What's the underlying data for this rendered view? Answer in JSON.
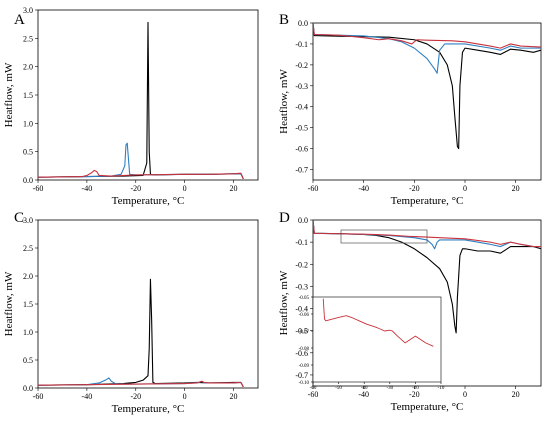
{
  "colors": {
    "black": "#000000",
    "blue": "#2e7fc2",
    "red": "#c8323c",
    "grey": "#555555"
  },
  "chart_data": [
    {
      "panel": "A",
      "type": "line",
      "xlabel": "Temperature, °C",
      "ylabel": "Heatflow, mW",
      "xlim": [
        -60,
        30
      ],
      "ylim": [
        0,
        3.0
      ],
      "x_ticks": [
        -60,
        -40,
        -20,
        0,
        20
      ],
      "y_ticks": [
        0.0,
        0.5,
        1.0,
        1.5,
        2.0,
        2.5,
        3.0
      ],
      "x_tick_labels": [
        "-60",
        "-40",
        "-20",
        "0",
        "20"
      ],
      "y_tick_labels": [
        "0.0",
        "0.5",
        "1.0",
        "1.5",
        "2.0",
        "2.5",
        "3.0"
      ],
      "series": [
        {
          "color": "#000000",
          "x": [
            -60,
            -40,
            -25,
            -17,
            -15.5,
            -15,
            -14.5,
            -14,
            -13,
            0,
            10,
            20,
            23,
            24
          ],
          "y": [
            0.05,
            0.06,
            0.07,
            0.08,
            0.3,
            2.78,
            0.5,
            0.1,
            0.09,
            0.1,
            0.1,
            0.11,
            0.11,
            0.02
          ]
        },
        {
          "color": "#2e7fc2",
          "x": [
            -60,
            -40,
            -30,
            -26,
            -24.5,
            -24,
            -23.5,
            -22.5,
            -20,
            0,
            10,
            20,
            23,
            24
          ],
          "y": [
            0.05,
            0.06,
            0.07,
            0.1,
            0.25,
            0.62,
            0.65,
            0.1,
            0.09,
            0.1,
            0.1,
            0.11,
            0.11,
            0.02
          ]
        },
        {
          "color": "#c8323c",
          "x": [
            -60,
            -42,
            -40,
            -38,
            -37,
            -36,
            -35,
            -30,
            -20,
            0,
            10,
            20,
            23,
            24
          ],
          "y": [
            0.05,
            0.06,
            0.08,
            0.13,
            0.17,
            0.15,
            0.08,
            0.07,
            0.09,
            0.1,
            0.1,
            0.11,
            0.12,
            0.02
          ]
        }
      ]
    },
    {
      "panel": "B",
      "type": "line",
      "xlabel": "Temperature, °C",
      "ylabel": "Heatflow, mW",
      "xlim": [
        -60,
        30
      ],
      "ylim": [
        -0.75,
        0.0
      ],
      "x_ticks": [
        -60,
        -40,
        -20,
        0,
        20
      ],
      "y_ticks": [
        0.0,
        -0.1,
        -0.2,
        -0.3,
        -0.4,
        -0.5,
        -0.6,
        -0.7
      ],
      "x_tick_labels": [
        "-60",
        "-40",
        "-20",
        "0",
        "20"
      ],
      "y_tick_labels": [
        "0.0",
        "-0.1",
        "-0.2",
        "-0.3",
        "-0.4",
        "-0.5",
        "-0.6",
        "-0.7"
      ],
      "series": [
        {
          "color": "#000000",
          "x": [
            -60,
            -59.5,
            -50,
            -40,
            -30,
            -20,
            -15,
            -10,
            -7,
            -5,
            -4,
            -3,
            -2.5,
            -2,
            -1,
            0,
            5,
            10,
            14,
            18,
            22,
            27,
            30
          ],
          "y": [
            0.0,
            -0.06,
            -0.063,
            -0.065,
            -0.068,
            -0.08,
            -0.1,
            -0.14,
            -0.2,
            -0.3,
            -0.45,
            -0.59,
            -0.6,
            -0.3,
            -0.14,
            -0.12,
            -0.13,
            -0.14,
            -0.15,
            -0.125,
            -0.13,
            -0.14,
            -0.13
          ]
        },
        {
          "color": "#2e7fc2",
          "x": [
            -60,
            -59.5,
            -50,
            -40,
            -30,
            -25,
            -20,
            -15,
            -12,
            -11,
            -10,
            -8,
            -5,
            0,
            10,
            14,
            18,
            22,
            30
          ],
          "y": [
            0.0,
            -0.055,
            -0.058,
            -0.062,
            -0.075,
            -0.09,
            -0.12,
            -0.17,
            -0.22,
            -0.24,
            -0.13,
            -0.1,
            -0.1,
            -0.1,
            -0.12,
            -0.13,
            -0.11,
            -0.12,
            -0.12
          ]
        },
        {
          "color": "#c8323c",
          "x": [
            -60,
            -59.5,
            -50,
            -40,
            -34,
            -30,
            -25,
            -21,
            -19,
            -15,
            -5,
            0,
            5,
            10,
            14,
            18,
            22,
            30
          ],
          "y": [
            0.0,
            -0.055,
            -0.058,
            -0.07,
            -0.08,
            -0.075,
            -0.085,
            -0.1,
            -0.08,
            -0.082,
            -0.085,
            -0.09,
            -0.1,
            -0.11,
            -0.12,
            -0.1,
            -0.11,
            -0.115
          ]
        }
      ]
    },
    {
      "panel": "C",
      "type": "line",
      "xlabel": "Temperature, °C",
      "ylabel": "Heatflow, mW",
      "xlim": [
        -60,
        30
      ],
      "ylim": [
        0,
        3.0
      ],
      "x_ticks": [
        -60,
        -40,
        -20,
        0,
        20
      ],
      "y_ticks": [
        0.0,
        0.5,
        1.0,
        1.5,
        2.0,
        2.5,
        3.0
      ],
      "x_tick_labels": [
        "-60",
        "-40",
        "-20",
        "0",
        "20"
      ],
      "y_tick_labels": [
        "0.0",
        "0.5",
        "1.0",
        "1.5",
        "2.0",
        "2.5",
        "3.0"
      ],
      "series": [
        {
          "color": "#000000",
          "x": [
            -60,
            -40,
            -25,
            -20,
            -17,
            -15,
            -14.5,
            -14,
            -13.5,
            -13,
            -12,
            0,
            5,
            10,
            20,
            23,
            24
          ],
          "y": [
            0.05,
            0.06,
            0.08,
            0.1,
            0.14,
            0.22,
            0.7,
            1.94,
            1.2,
            0.1,
            0.08,
            0.09,
            0.1,
            0.09,
            0.1,
            0.1,
            0.02
          ]
        },
        {
          "color": "#2e7fc2",
          "x": [
            -60,
            -40,
            -35,
            -32,
            -31,
            -30,
            -28,
            -20,
            0,
            6,
            7,
            8,
            20,
            23,
            24
          ],
          "y": [
            0.05,
            0.06,
            0.09,
            0.15,
            0.18,
            0.12,
            0.07,
            0.07,
            0.08,
            0.1,
            0.12,
            0.09,
            0.09,
            0.1,
            0.02
          ]
        },
        {
          "color": "#c8323c",
          "x": [
            -60,
            -40,
            -20,
            0,
            5,
            7,
            8,
            10,
            20,
            23,
            24
          ],
          "y": [
            0.05,
            0.06,
            0.07,
            0.08,
            0.09,
            0.12,
            0.1,
            0.09,
            0.09,
            0.1,
            0.02
          ]
        }
      ]
    },
    {
      "panel": "D",
      "type": "line",
      "xlabel": "Temperature, °C",
      "ylabel": "Heatflow, mW",
      "xlim": [
        -60,
        30
      ],
      "ylim": [
        -0.75,
        0.0
      ],
      "x_ticks": [
        -60,
        -40,
        -20,
        0,
        20
      ],
      "y_ticks": [
        0.0,
        -0.1,
        -0.2,
        -0.3,
        -0.4,
        -0.5,
        -0.6,
        -0.7
      ],
      "x_tick_labels": [
        "-60",
        "-40",
        "-20",
        "0",
        "20"
      ],
      "y_tick_labels": [
        "0.0",
        "-0.1",
        "-0.2",
        "-0.3",
        "-0.4",
        "-0.5",
        "-0.6",
        "-0.7"
      ],
      "series": [
        {
          "color": "#000000",
          "x": [
            -60,
            -59.5,
            -50,
            -40,
            -35,
            -30,
            -25,
            -20,
            -15,
            -10,
            -7,
            -5,
            -4,
            -3.5,
            -3,
            -2,
            -1,
            0,
            5,
            10,
            14,
            18,
            22,
            27,
            30
          ],
          "y": [
            0.0,
            -0.06,
            -0.062,
            -0.065,
            -0.07,
            -0.08,
            -0.1,
            -0.13,
            -0.17,
            -0.22,
            -0.28,
            -0.38,
            -0.48,
            -0.51,
            -0.35,
            -0.16,
            -0.13,
            -0.13,
            -0.14,
            -0.14,
            -0.15,
            -0.12,
            -0.12,
            -0.12,
            -0.13
          ]
        },
        {
          "color": "#2e7fc2",
          "x": [
            -60,
            -59.5,
            -50,
            -40,
            -30,
            -20,
            -15,
            -13,
            -12,
            -11,
            -10,
            0,
            10,
            14,
            18,
            22,
            27,
            30
          ],
          "y": [
            0.0,
            -0.06,
            -0.062,
            -0.065,
            -0.07,
            -0.08,
            -0.09,
            -0.11,
            -0.13,
            -0.1,
            -0.09,
            -0.09,
            -0.11,
            -0.12,
            -0.1,
            -0.11,
            -0.12,
            -0.12
          ]
        },
        {
          "color": "#c8323c",
          "x": [
            -60,
            -59.5,
            -55,
            -50,
            -45,
            -40,
            -35,
            -30,
            -25,
            -22,
            -20,
            -15,
            -10,
            0,
            10,
            14,
            18,
            22,
            27,
            30
          ],
          "y": [
            0.0,
            -0.06,
            -0.061,
            -0.062,
            -0.063,
            -0.064,
            -0.066,
            -0.068,
            -0.072,
            -0.074,
            -0.075,
            -0.077,
            -0.08,
            -0.085,
            -0.1,
            -0.11,
            -0.1,
            -0.11,
            -0.12,
            -0.12
          ]
        }
      ],
      "inset": {
        "xlim": [
          -60,
          -10
        ],
        "ylim": [
          -0.1,
          -0.05
        ],
        "x_ticks": [
          -60,
          -50,
          -40,
          -30,
          -20,
          -10
        ],
        "y_ticks": [
          -0.05,
          -0.06,
          -0.07,
          -0.08,
          -0.09,
          -0.1
        ],
        "x_tick_labels": [
          "-60",
          "-50",
          "-40",
          "-30",
          "-20",
          "-10"
        ],
        "y_tick_labels": [
          "-0.05",
          "-0.06",
          "-0.07",
          "-0.08",
          "-0.09",
          "-0.10"
        ],
        "series": [
          {
            "color": "#c8323c",
            "x": [
              -56,
              -55.5,
              -55,
              -50,
              -47,
              -45,
              -42,
              -39,
              -35,
              -32,
              -30,
              -29,
              -27,
              -24,
              -22,
              -20,
              -18,
              -16,
              -13
            ],
            "y": [
              -0.051,
              -0.063,
              -0.064,
              -0.062,
              -0.061,
              -0.062,
              -0.064,
              -0.066,
              -0.068,
              -0.07,
              -0.0695,
              -0.07,
              -0.073,
              -0.077,
              -0.075,
              -0.073,
              -0.075,
              -0.077,
              -0.079
            ]
          }
        ]
      }
    }
  ]
}
